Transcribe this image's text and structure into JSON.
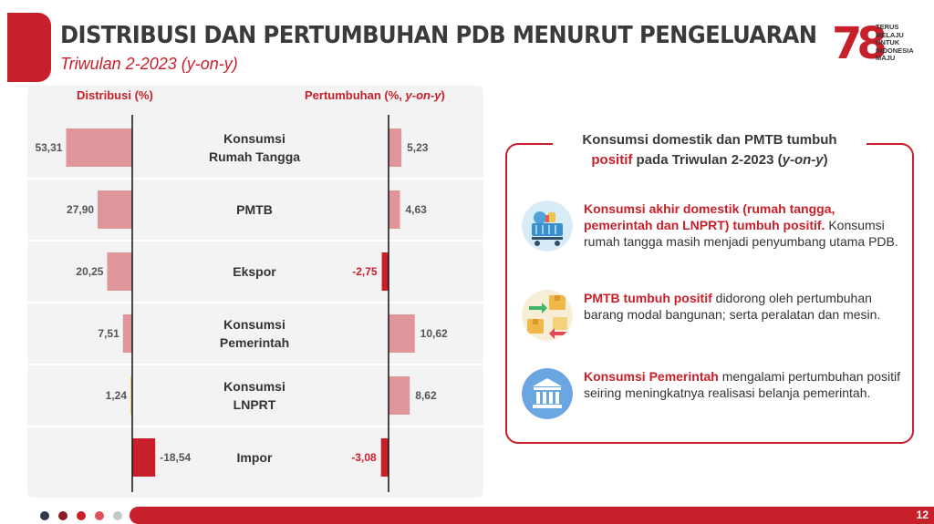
{
  "header": {
    "title": "DISTRIBUSI DAN PERTUMBUHAN PDB MENURUT PENGELUARAN",
    "subtitle": "Triwulan 2-2023 (y-on-y)"
  },
  "logo": {
    "number": "78",
    "lines": [
      "TERUS",
      "MELAJU",
      "UNTUK",
      "INDONESIA",
      "MAJU"
    ]
  },
  "chart_data": {
    "type": "bar",
    "categories": [
      [
        "Konsumsi",
        "Rumah Tangga"
      ],
      [
        "PMTB"
      ],
      [
        "Ekspor"
      ],
      [
        "Konsumsi",
        "Pemerintah"
      ],
      [
        "Konsumsi",
        "LNPRT"
      ],
      [
        "Impor"
      ]
    ],
    "series": [
      {
        "name": "Distribusi (%)",
        "values": [
          53.31,
          27.9,
          20.25,
          7.51,
          1.24,
          -18.54
        ]
      },
      {
        "name": "Pertumbuhan (%, y-on-y)",
        "values": [
          5.23,
          4.63,
          -2.75,
          10.62,
          8.62,
          -3.08
        ]
      }
    ],
    "value_labels": {
      "distribusi": [
        "53,31",
        "27,90",
        "20,25",
        "7,51",
        "1,24",
        "-18,54"
      ],
      "pertumbuhan": [
        "5,23",
        "4,63",
        "-2,75",
        "10,62",
        "8,62",
        "-3,08"
      ]
    },
    "headers": {
      "left": "Distribusi (%)",
      "right_prefix": "Pertumbuhan (%, ",
      "right_italic": "y-on-y",
      "right_suffix": ")"
    },
    "colors": {
      "positive": "#df959a",
      "negative": "#c8202a",
      "small": "#e8cf74"
    }
  },
  "info": {
    "title_line1": "Konsumsi domestik dan PMTB tumbuh",
    "title_red": "positif",
    "title_mid": " pada Triwulan 2-2023 (",
    "title_italic": "y-on-y",
    "title_end": ")",
    "items": [
      {
        "icon": "shopping-cart-icon",
        "bold": "Konsumsi akhir domestik (rumah tangga, pemerintah dan LNPRT) tumbuh positif.",
        "text": " Konsumsi rumah tangga masih menjadi penyumbang utama PDB."
      },
      {
        "icon": "boxes-transfer-icon",
        "bold": "PMTB tumbuh positif",
        "text": " didorong oleh pertumbuhan barang modal bangunan; serta peralatan dan mesin."
      },
      {
        "icon": "government-building-icon",
        "bold": "Konsumsi Pemerintah",
        "text": " mengalami pertumbuhan positif seiring meningkatnya realisasi belanja pemerintah."
      }
    ]
  },
  "footer": {
    "page": "12",
    "dot_colors": [
      "#2e3a4e",
      "#8a1c24",
      "#c8202a",
      "#e0505a",
      "#c8c8c8"
    ]
  }
}
